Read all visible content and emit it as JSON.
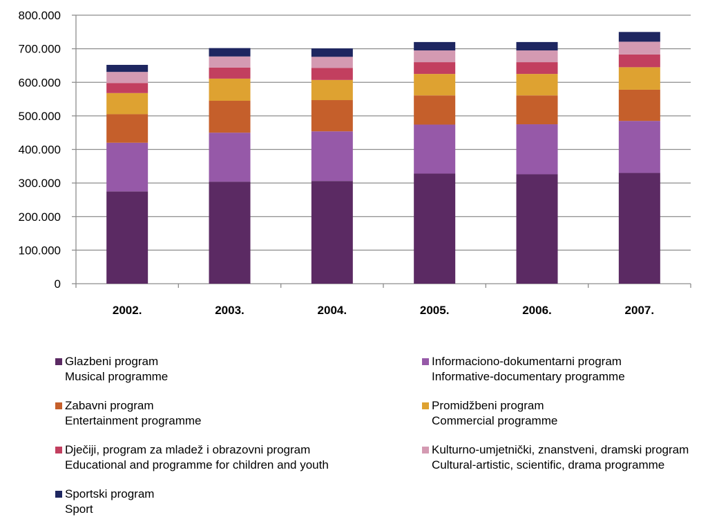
{
  "chart_data": {
    "type": "bar",
    "stacked": true,
    "categories": [
      "2002.",
      "2003.",
      "2004.",
      "2005.",
      "2006.",
      "2007."
    ],
    "y_ticks": [
      "0",
      "100.000",
      "200.000",
      "300.000",
      "400.000",
      "500.000",
      "600.000",
      "700.000",
      "800.000"
    ],
    "ylim": [
      0,
      800000
    ],
    "grid": true,
    "legend_position": "bottom",
    "series": [
      {
        "name": "Glazbeni program",
        "name_en": "Musical programme",
        "color": "#5b2a63",
        "values": [
          275000,
          304000,
          306000,
          328000,
          326000,
          330000
        ]
      },
      {
        "name": "Informaciono-dokumentarni program",
        "name_en": "Informative-documentary programme",
        "color": "#9659a8",
        "values": [
          145000,
          146000,
          148000,
          146000,
          149000,
          155000
        ]
      },
      {
        "name": "Zabavni program",
        "name_en": "Entertainment programme",
        "color": "#c55f2b",
        "values": [
          85000,
          95000,
          93000,
          87000,
          86000,
          93000
        ]
      },
      {
        "name": "Promidžbeni program",
        "name_en": "Commercial programme",
        "color": "#dea231",
        "values": [
          63000,
          66000,
          60000,
          64000,
          64000,
          67000
        ]
      },
      {
        "name": "Dječiji, program za mladež i obrazovni program",
        "name_en": "Educational and programme for children and youth",
        "color": "#c23f5f",
        "values": [
          30000,
          33000,
          36000,
          35000,
          35000,
          38000
        ]
      },
      {
        "name": "Kulturno-umjetnički, znanstveni, dramski program",
        "name_en": "Cultural-artistic, scientific, drama programme",
        "color": "#d49ab2",
        "values": [
          33000,
          33000,
          33000,
          35000,
          35000,
          38000
        ]
      },
      {
        "name": "Sportski program",
        "name_en": "Sport",
        "color": "#1e2660",
        "values": [
          21000,
          25000,
          25000,
          25000,
          25000,
          29000
        ]
      }
    ]
  }
}
